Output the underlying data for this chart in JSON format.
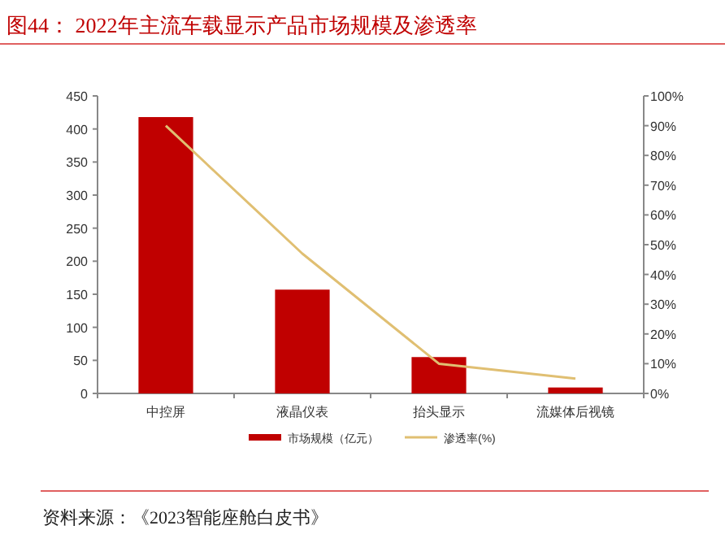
{
  "chart_data": {
    "type": "bar",
    "title": "图44：  2022年主流车载显示产品市场规模及渗透率",
    "categories": [
      "中控屏",
      "液晶仪表",
      "抬头显示",
      "流媒体后视镜"
    ],
    "series": [
      {
        "name": "市场规模（亿元）",
        "color": "#c00000",
        "values": [
          418,
          157,
          55,
          9
        ]
      },
      {
        "name": "渗透率(%)",
        "type": "line",
        "axis": "y2",
        "color": "#e0bf72",
        "values": [
          90,
          47,
          10,
          5
        ]
      }
    ],
    "ylim": [
      0,
      450
    ],
    "yticks": [
      0,
      50,
      100,
      150,
      200,
      250,
      300,
      350,
      400,
      450
    ],
    "y2lim": [
      0,
      100
    ],
    "y2ticks": [
      {
        "value": 0,
        "label": "0%"
      },
      {
        "value": 10,
        "label": "10%"
      },
      {
        "value": 20,
        "label": "20%"
      },
      {
        "value": 30,
        "label": "30%"
      },
      {
        "value": 40,
        "label": "40%"
      },
      {
        "value": 50,
        "label": "50%"
      },
      {
        "value": 60,
        "label": "60%"
      },
      {
        "value": 70,
        "label": "70%"
      },
      {
        "value": 80,
        "label": "80%"
      },
      {
        "value": 90,
        "label": "90%"
      },
      {
        "value": 100,
        "label": "100%"
      }
    ],
    "legend": "bottom",
    "grid": false,
    "marker": "none",
    "annotations": [
      "资料来源：《2023智能座舱白皮书》"
    ]
  }
}
